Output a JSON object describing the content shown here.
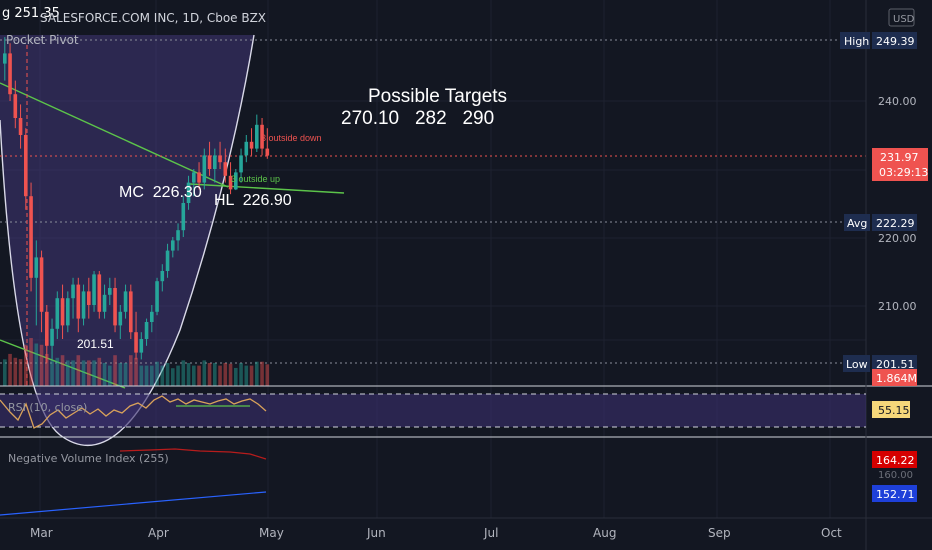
{
  "header": {
    "symbol_line": "g 251.35",
    "title": "SALESFORCE.COM INC, 1D, Cboe BZX",
    "indicator": "Pocket Pivot"
  },
  "currency": "USD",
  "annotations": {
    "targets_title": "Possible Targets",
    "targets_values": "270.10   282   290",
    "mc": "MC  226.30",
    "hl": "HL  226.90",
    "low_label": "201.51",
    "outside_down": "3 outside down",
    "outside_up": "3 outside up"
  },
  "price_badges": [
    {
      "tag": "High",
      "value": "249.39",
      "y": 249.39
    },
    {
      "tag": "",
      "value": "231.97",
      "sub": "03:29:13",
      "y": 231.97
    },
    {
      "tag": "Avg",
      "value": "222.29",
      "y": 222.29
    },
    {
      "tag": "Low",
      "value": "201.51",
      "y": 201.51
    }
  ],
  "volume_badge": "1.864M",
  "rsi": {
    "label": "RSI (10, close)",
    "value": "55.15"
  },
  "nvi": {
    "label": "Negative Volume Index (255)",
    "value1": "164.22",
    "value2": "152.71",
    "tick": "160.00"
  },
  "colors": {
    "bg": "#131722",
    "up": "#26a69a",
    "down": "#ef5350",
    "curve_fill": "#4b3f8a",
    "trend": "#5cc44a",
    "rsi_line": "#d9a25a",
    "nvi_red": "#b71c1c",
    "nvi_blue": "#2962ff"
  },
  "chart_data": {
    "type": "candlestick",
    "title": "SALESFORCE.COM INC, 1D, Cboe BZX",
    "y_axis_ticks": [
      210,
      220,
      240
    ],
    "y_tick_labels": [
      "210.00",
      "220.00",
      "240.00"
    ],
    "x_tick_labels": [
      "Mar",
      "Apr",
      "May",
      "Jun",
      "Jul",
      "Aug",
      "Sep",
      "Oct"
    ],
    "ylim": [
      197.5,
      252.2
    ],
    "series": [
      {
        "date": "02-18",
        "o": 245.5,
        "h": 249.4,
        "l": 243,
        "c": 247
      },
      {
        "date": "02-19",
        "o": 247,
        "h": 248.5,
        "l": 240,
        "c": 241
      },
      {
        "date": "02-20",
        "o": 241,
        "h": 243,
        "l": 236,
        "c": 237.5
      },
      {
        "date": "02-21",
        "o": 237.5,
        "h": 239.5,
        "l": 233,
        "c": 235
      },
      {
        "date": "02-24",
        "o": 235,
        "h": 236,
        "l": 224,
        "c": 226
      },
      {
        "date": "02-25",
        "o": 226,
        "h": 228,
        "l": 212,
        "c": 214
      },
      {
        "date": "02-26",
        "o": 214,
        "h": 219.5,
        "l": 207,
        "c": 217
      },
      {
        "date": "02-27",
        "o": 217,
        "h": 218,
        "l": 206,
        "c": 209
      },
      {
        "date": "02-28",
        "o": 209,
        "h": 210,
        "l": 201.51,
        "c": 204
      },
      {
        "date": "03-02",
        "o": 204,
        "h": 208,
        "l": 202,
        "c": 206.5
      },
      {
        "date": "03-03",
        "o": 206.5,
        "h": 212,
        "l": 205,
        "c": 211
      },
      {
        "date": "03-04",
        "o": 211,
        "h": 213,
        "l": 205,
        "c": 207
      },
      {
        "date": "03-05",
        "o": 207,
        "h": 212,
        "l": 206,
        "c": 211
      },
      {
        "date": "03-06",
        "o": 211,
        "h": 214,
        "l": 208,
        "c": 213
      },
      {
        "date": "03-09",
        "o": 213,
        "h": 214,
        "l": 206,
        "c": 208
      },
      {
        "date": "03-10",
        "o": 208,
        "h": 213,
        "l": 207,
        "c": 212
      },
      {
        "date": "03-11",
        "o": 212,
        "h": 214,
        "l": 208,
        "c": 210
      },
      {
        "date": "03-12",
        "o": 210,
        "h": 215,
        "l": 209,
        "c": 214.5
      },
      {
        "date": "03-13",
        "o": 214.5,
        "h": 215,
        "l": 208,
        "c": 209
      },
      {
        "date": "03-16",
        "o": 209,
        "h": 213,
        "l": 208,
        "c": 211.5
      },
      {
        "date": "03-17",
        "o": 211.5,
        "h": 214,
        "l": 210,
        "c": 212.5
      },
      {
        "date": "03-18",
        "o": 212.5,
        "h": 214,
        "l": 206,
        "c": 207
      },
      {
        "date": "03-19",
        "o": 207,
        "h": 210,
        "l": 205,
        "c": 209
      },
      {
        "date": "03-20",
        "o": 209,
        "h": 213,
        "l": 208,
        "c": 212
      },
      {
        "date": "03-23",
        "o": 212,
        "h": 213,
        "l": 205,
        "c": 206
      },
      {
        "date": "03-24",
        "o": 206,
        "h": 209,
        "l": 202,
        "c": 203
      },
      {
        "date": "03-25",
        "o": 203,
        "h": 206,
        "l": 202,
        "c": 205
      },
      {
        "date": "03-26",
        "o": 205,
        "h": 208,
        "l": 204,
        "c": 207.5
      },
      {
        "date": "03-27",
        "o": 207.5,
        "h": 210,
        "l": 206,
        "c": 209
      },
      {
        "date": "03-30",
        "o": 209,
        "h": 214,
        "l": 208.5,
        "c": 213.5
      },
      {
        "date": "03-31",
        "o": 213.5,
        "h": 216,
        "l": 212,
        "c": 215
      },
      {
        "date": "04-01",
        "o": 215,
        "h": 219,
        "l": 214,
        "c": 218
      },
      {
        "date": "04-02",
        "o": 218,
        "h": 220,
        "l": 217,
        "c": 219.5
      },
      {
        "date": "04-03",
        "o": 219.5,
        "h": 222,
        "l": 218,
        "c": 221
      },
      {
        "date": "04-06",
        "o": 221,
        "h": 226,
        "l": 220,
        "c": 225
      },
      {
        "date": "04-07",
        "o": 225,
        "h": 229,
        "l": 224,
        "c": 228
      },
      {
        "date": "04-08",
        "o": 228,
        "h": 230,
        "l": 226,
        "c": 229.5
      },
      {
        "date": "04-09",
        "o": 229.5,
        "h": 231,
        "l": 227,
        "c": 228
      },
      {
        "date": "04-13",
        "o": 228,
        "h": 233,
        "l": 227,
        "c": 232
      },
      {
        "date": "04-14",
        "o": 232,
        "h": 234,
        "l": 229,
        "c": 230
      },
      {
        "date": "04-15",
        "o": 230,
        "h": 233,
        "l": 228,
        "c": 232
      },
      {
        "date": "04-16",
        "o": 232,
        "h": 234,
        "l": 230,
        "c": 231
      },
      {
        "date": "04-17",
        "o": 231,
        "h": 233,
        "l": 228,
        "c": 229
      },
      {
        "date": "04-20",
        "o": 229,
        "h": 231,
        "l": 226.3,
        "c": 227
      },
      {
        "date": "04-21",
        "o": 227,
        "h": 230,
        "l": 226.9,
        "c": 229.5
      },
      {
        "date": "04-22",
        "o": 229.5,
        "h": 233,
        "l": 228,
        "c": 232
      },
      {
        "date": "04-23",
        "o": 232,
        "h": 235,
        "l": 231,
        "c": 234
      },
      {
        "date": "04-24",
        "o": 234,
        "h": 236,
        "l": 232,
        "c": 233
      },
      {
        "date": "04-27",
        "o": 233,
        "h": 238,
        "l": 232.5,
        "c": 236.5
      },
      {
        "date": "04-28",
        "o": 236.5,
        "h": 237.5,
        "l": 232,
        "c": 233
      },
      {
        "date": "04-29",
        "o": 233,
        "h": 236,
        "l": 231.5,
        "c": 231.97
      }
    ]
  }
}
